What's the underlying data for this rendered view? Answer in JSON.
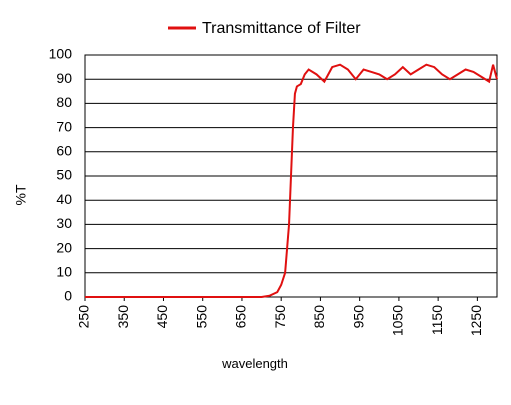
{
  "chart_data": {
    "type": "line",
    "ylabel": "%T",
    "xlabel": "wavelength",
    "x": [
      250,
      700,
      720,
      740,
      750,
      760,
      770,
      775,
      780,
      785,
      790,
      800,
      810,
      820,
      840,
      860,
      880,
      900,
      920,
      940,
      960,
      980,
      1000,
      1020,
      1040,
      1060,
      1080,
      1100,
      1120,
      1140,
      1160,
      1180,
      1200,
      1220,
      1240,
      1260,
      1280,
      1290,
      1300
    ],
    "series": [
      {
        "name": "Transmittance of Filter",
        "color": "#e01010",
        "values": [
          0,
          0,
          0.5,
          2,
          5,
          10,
          30,
          50,
          70,
          84,
          87,
          88,
          92,
          94,
          92,
          89,
          95,
          96,
          94,
          90,
          94,
          93,
          92,
          90,
          92,
          95,
          92,
          94,
          96,
          95,
          92,
          90,
          92,
          94,
          93,
          91,
          89,
          96,
          90
        ]
      }
    ],
    "xlim": [
      250,
      1300
    ],
    "xticks": [
      250,
      350,
      450,
      550,
      650,
      750,
      850,
      950,
      1050,
      1150,
      1250
    ],
    "ylim": [
      0,
      100
    ],
    "yticks": [
      0,
      10,
      20,
      30,
      40,
      50,
      60,
      70,
      80,
      90,
      100
    ],
    "grid": true,
    "legend": "top"
  }
}
